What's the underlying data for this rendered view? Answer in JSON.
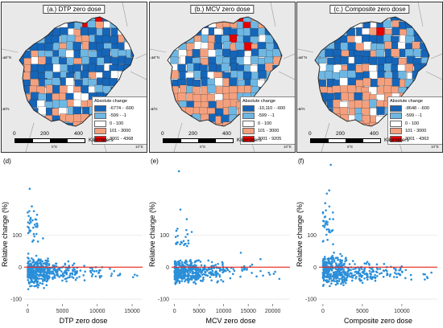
{
  "colors": {
    "dark_blue": "#1565b8",
    "light_blue": "#6fb7e3",
    "white": "#ffffff",
    "salmon": "#f4a07e",
    "red": "#e60000",
    "points": "#2b8fd8",
    "zero_line": "#e8241c"
  },
  "maps": [
    {
      "title": "(a.) DTP zero dose",
      "legend_title": "Absolute change",
      "legend_items": [
        "-6774 - -600",
        "-599 - -1",
        "0 - 100",
        "101 - 3000",
        "3001 - 4368"
      ],
      "scale_ticks": [
        "0",
        "200",
        "400"
      ],
      "scale_unit": "Kilometers",
      "coords": [
        "10°N",
        "5°N",
        "5°E",
        "10°E"
      ]
    },
    {
      "title": "(b.) MCV zero dose",
      "legend_title": "Absolute change",
      "legend_items": [
        "-10,110 - -600",
        "-599 - -1",
        "0 - 100",
        "101 - 3000",
        "3001 - 9205"
      ],
      "scale_ticks": [
        "0",
        "200",
        "400"
      ],
      "scale_unit": "Kilometers",
      "coords": [
        "10°N",
        "5°N",
        "5°E",
        "10°E"
      ]
    },
    {
      "title": "(c.) Composite zero dose",
      "legend_title": "Absolute change",
      "legend_items": [
        "-8648 - -600",
        "-599 - -1",
        "0 - 100",
        "101 - 3000",
        "3001 - 4363"
      ],
      "scale_ticks": [
        "0",
        "200",
        "400"
      ],
      "scale_unit": "Kilometers",
      "coords": [
        "10°N",
        "5°N",
        "5°E",
        "10°E"
      ]
    }
  ],
  "chart_data": [
    {
      "type": "scatter",
      "panel": "(d)",
      "xlabel": "DTP zero dose",
      "ylabel": "Relative change (%)",
      "xlim": [
        -500,
        16500
      ],
      "ylim": [
        -115,
        320
      ],
      "xticks": [
        0,
        5000,
        10000,
        15000
      ],
      "yticks": [
        -100,
        0,
        100
      ],
      "reference_line_y": 0,
      "seed": 11,
      "clusters": [
        {
          "n": 320,
          "x": [
            0,
            3000
          ],
          "y": [
            -75,
            45
          ]
        },
        {
          "n": 110,
          "x": [
            3000,
            7000
          ],
          "y": [
            -60,
            30
          ]
        },
        {
          "n": 35,
          "x": [
            7000,
            12000
          ],
          "y": [
            -50,
            20
          ]
        },
        {
          "n": 8,
          "x": [
            12000,
            16000
          ],
          "y": [
            -45,
            -5
          ]
        },
        {
          "n": 28,
          "x": [
            0,
            1500
          ],
          "y": [
            50,
            200
          ]
        }
      ],
      "outliers": [
        [
          300,
          245
        ],
        [
          600,
          190
        ],
        [
          900,
          175
        ],
        [
          150,
          160
        ],
        [
          1400,
          130
        ],
        [
          250,
          110
        ],
        [
          2200,
          90
        ],
        [
          700,
          80
        ]
      ]
    },
    {
      "type": "scatter",
      "panel": "(e)",
      "xlabel": "MCV zero dose",
      "ylabel": "Relative change (%)",
      "xlim": [
        -600,
        23500
      ],
      "ylim": [
        -115,
        320
      ],
      "xticks": [
        0,
        5000,
        10000,
        15000,
        20000
      ],
      "yticks": [
        -100,
        0,
        100
      ],
      "reference_line_y": 0,
      "seed": 23,
      "clusters": [
        {
          "n": 330,
          "x": [
            0,
            5000
          ],
          "y": [
            -65,
            35
          ]
        },
        {
          "n": 100,
          "x": [
            5000,
            10000
          ],
          "y": [
            -55,
            30
          ]
        },
        {
          "n": 30,
          "x": [
            10000,
            16000
          ],
          "y": [
            -45,
            25
          ]
        },
        {
          "n": 8,
          "x": [
            16000,
            22000
          ],
          "y": [
            -50,
            20
          ]
        },
        {
          "n": 20,
          "x": [
            0,
            3000
          ],
          "y": [
            35,
            140
          ]
        }
      ],
      "outliers": [
        [
          900,
          300
        ],
        [
          1200,
          180
        ],
        [
          2500,
          150
        ],
        [
          600,
          120
        ],
        [
          3500,
          110
        ],
        [
          13500,
          45
        ],
        [
          17500,
          25
        ]
      ]
    },
    {
      "type": "scatter",
      "panel": "(f)",
      "xlabel": "Composite zero dose",
      "ylabel": "Relative change (%)",
      "xlim": [
        -500,
        14500
      ],
      "ylim": [
        -115,
        320
      ],
      "xticks": [
        0,
        5000,
        10000
      ],
      "yticks": [
        -100,
        0,
        100
      ],
      "reference_line_y": 0,
      "seed": 37,
      "clusters": [
        {
          "n": 320,
          "x": [
            0,
            3000
          ],
          "y": [
            -75,
            50
          ]
        },
        {
          "n": 110,
          "x": [
            3000,
            7000
          ],
          "y": [
            -60,
            30
          ]
        },
        {
          "n": 35,
          "x": [
            7000,
            11000
          ],
          "y": [
            -50,
            20
          ]
        },
        {
          "n": 8,
          "x": [
            11000,
            14000
          ],
          "y": [
            -45,
            -10
          ]
        },
        {
          "n": 30,
          "x": [
            0,
            1500
          ],
          "y": [
            50,
            220
          ]
        }
      ],
      "outliers": [
        [
          1000,
          320
        ],
        [
          800,
          240
        ],
        [
          500,
          230
        ],
        [
          300,
          200
        ],
        [
          1300,
          150
        ],
        [
          200,
          125
        ]
      ]
    }
  ]
}
